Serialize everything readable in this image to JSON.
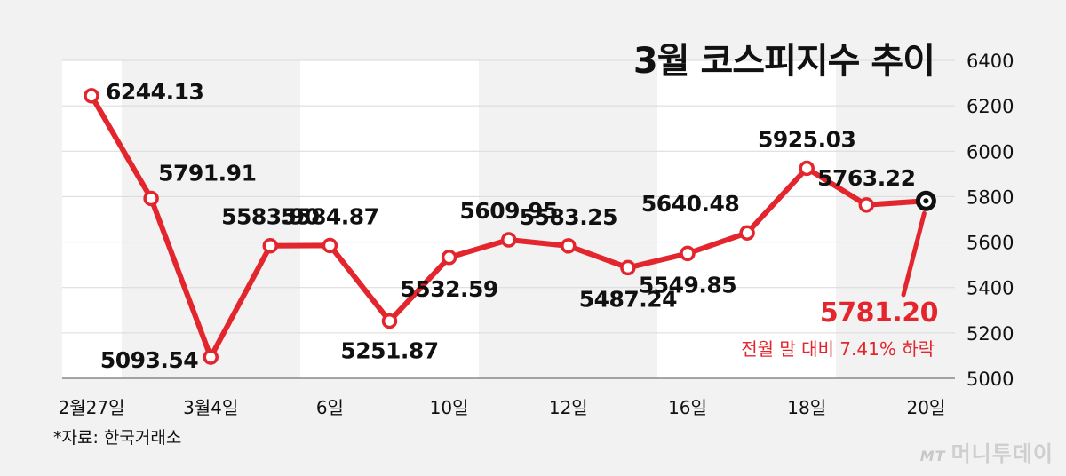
{
  "chart_data": {
    "type": "line",
    "title": "3월 코스피지수 추이",
    "x_tick_labels": [
      "2월27일",
      "3월4일",
      "6일",
      "10일",
      "12일",
      "16일",
      "18일",
      "20일"
    ],
    "y_ticks": [
      5000,
      5200,
      5400,
      5600,
      5800,
      6000,
      6200,
      6400
    ],
    "ylim": [
      5000,
      6400
    ],
    "series": [
      {
        "color": "#e3262d",
        "points": [
          {
            "date": "2월27일",
            "value": 6244.13
          },
          {
            "date": "3월3일",
            "value": 5791.91
          },
          {
            "date": "3월4일",
            "value": 5093.54
          },
          {
            "date": "3월5일",
            "value": 5583.9
          },
          {
            "date": "3월6일",
            "value": 5584.87
          },
          {
            "date": "3월9일",
            "value": 5251.87
          },
          {
            "date": "3월10일",
            "value": 5532.59
          },
          {
            "date": "3월11일",
            "value": 5609.95
          },
          {
            "date": "3월12일",
            "value": 5583.25
          },
          {
            "date": "3월13일",
            "value": 5487.24
          },
          {
            "date": "3월16일",
            "value": 5549.85
          },
          {
            "date": "3월17일",
            "value": 5640.48
          },
          {
            "date": "3월18일",
            "value": 5925.03
          },
          {
            "date": "3월19일",
            "value": 5763.22
          },
          {
            "date": "3월20일",
            "value": 5781.2
          }
        ]
      }
    ],
    "data_labels": [
      "6244.13",
      "5791.91",
      "5093.54",
      "5583.90",
      "5584.87",
      "5251.87",
      "5532.59",
      "5609.95",
      "5583.25",
      "5487.24",
      "5549.85",
      "5640.48",
      "5925.03",
      "5763.22",
      "5781.20"
    ],
    "annotation": "전월 말 대비 7.41% 하락",
    "grid": true,
    "colors": {
      "line": "#e3262d",
      "band": "#ffffff",
      "background": "#f2f2f2",
      "text": "#111111"
    }
  },
  "source": "*자료: 한국거래소",
  "watermark": {
    "logo": "MT",
    "text": "머니투데이"
  }
}
